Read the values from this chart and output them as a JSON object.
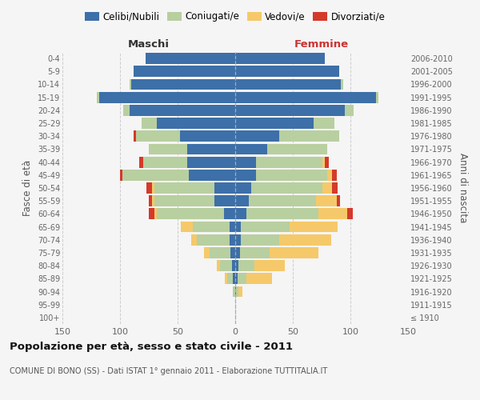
{
  "age_groups": [
    "100+",
    "95-99",
    "90-94",
    "85-89",
    "80-84",
    "75-79",
    "70-74",
    "65-69",
    "60-64",
    "55-59",
    "50-54",
    "45-49",
    "40-44",
    "35-39",
    "30-34",
    "25-29",
    "20-24",
    "15-19",
    "10-14",
    "5-9",
    "0-4"
  ],
  "birth_years": [
    "≤ 1910",
    "1911-1915",
    "1916-1920",
    "1921-1925",
    "1926-1930",
    "1931-1935",
    "1936-1940",
    "1941-1945",
    "1946-1950",
    "1951-1955",
    "1956-1960",
    "1961-1965",
    "1966-1970",
    "1971-1975",
    "1976-1980",
    "1981-1985",
    "1986-1990",
    "1991-1995",
    "1996-2000",
    "2001-2005",
    "2006-2010"
  ],
  "maschi": {
    "celibi": [
      0,
      0,
      0,
      2,
      3,
      4,
      5,
      5,
      10,
      18,
      18,
      40,
      42,
      42,
      48,
      68,
      92,
      118,
      90,
      88,
      78
    ],
    "coniugati": [
      0,
      0,
      2,
      5,
      10,
      18,
      28,
      32,
      58,
      52,
      52,
      58,
      38,
      33,
      38,
      13,
      5,
      2,
      2,
      0,
      0
    ],
    "vedovi": [
      0,
      0,
      0,
      2,
      3,
      5,
      5,
      10,
      2,
      2,
      2,
      0,
      0,
      0,
      0,
      0,
      0,
      0,
      0,
      0,
      0
    ],
    "divorziati": [
      0,
      0,
      0,
      0,
      0,
      0,
      0,
      0,
      5,
      3,
      5,
      2,
      3,
      0,
      2,
      0,
      0,
      0,
      0,
      0,
      0
    ]
  },
  "femmine": {
    "nubili": [
      0,
      0,
      1,
      2,
      3,
      4,
      5,
      5,
      10,
      12,
      14,
      18,
      18,
      28,
      38,
      68,
      95,
      122,
      92,
      90,
      78
    ],
    "coniugate": [
      0,
      0,
      2,
      8,
      14,
      26,
      33,
      42,
      62,
      58,
      62,
      62,
      58,
      52,
      52,
      18,
      8,
      2,
      2,
      0,
      0
    ],
    "vedove": [
      0,
      1,
      3,
      22,
      26,
      42,
      45,
      42,
      25,
      18,
      8,
      4,
      2,
      0,
      0,
      0,
      0,
      0,
      0,
      0,
      0
    ],
    "divorziate": [
      0,
      0,
      0,
      0,
      0,
      0,
      0,
      0,
      5,
      3,
      5,
      4,
      3,
      0,
      0,
      0,
      0,
      0,
      0,
      0,
      0
    ]
  },
  "colors": {
    "celibi": "#3d6fa8",
    "coniugati": "#b8cfa0",
    "vedovi": "#f5c96a",
    "divorziati": "#d43a2a"
  },
  "legend_labels": [
    "Celibi/Nubili",
    "Coniugati/e",
    "Vedovi/e",
    "Divorziati/e"
  ],
  "title": "Popolazione per età, sesso e stato civile - 2011",
  "subtitle": "COMUNE DI BONO (SS) - Dati ISTAT 1° gennaio 2011 - Elaborazione TUTTITALIA.IT",
  "label_maschi": "Maschi",
  "label_femmine": "Femmine",
  "ylabel_left": "Fasce di età",
  "ylabel_right": "Anni di nascita",
  "xlim": 150,
  "bg_color": "#f5f5f5",
  "bar_height": 0.85
}
